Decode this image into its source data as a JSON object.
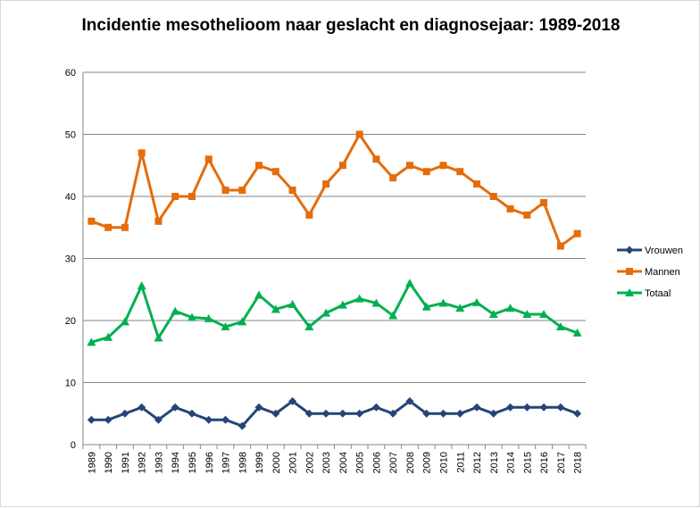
{
  "chart_data": {
    "type": "line",
    "title": "Incidentie mesothelioom naar geslacht en diagnosejaar:  1989-2018",
    "xlabel": "",
    "ylabel": "",
    "ylim": [
      0,
      60
    ],
    "yticks": [
      0,
      10,
      20,
      30,
      40,
      50,
      60
    ],
    "grid": true,
    "legend_position": "right",
    "categories": [
      "1989",
      "1990",
      "1991",
      "1992",
      "1993",
      "1994",
      "1995",
      "1996",
      "1997",
      "1998",
      "1999",
      "2000",
      "2001",
      "2002",
      "2003",
      "2004",
      "2005",
      "2006",
      "2007",
      "2008",
      "2009",
      "2010",
      "2011",
      "2012",
      "2013",
      "2014",
      "2015",
      "2016",
      "2017",
      "2018"
    ],
    "series": [
      {
        "name": "Vrouwen",
        "color": "#264478",
        "marker": "diamond",
        "values": [
          4,
          4,
          5,
          6,
          4,
          6,
          5,
          4,
          4,
          3,
          6,
          5,
          7,
          5,
          5,
          5,
          5,
          6,
          5,
          7,
          5,
          5,
          5,
          6,
          5,
          6,
          6,
          6,
          6,
          5
        ]
      },
      {
        "name": "Mannen",
        "color": "#e46c0a",
        "marker": "square",
        "values": [
          36,
          35,
          35,
          47,
          36,
          40,
          40,
          46,
          41,
          41,
          45,
          44,
          41,
          37,
          42,
          45,
          50,
          46,
          43,
          45,
          44,
          45,
          44,
          42,
          40,
          38,
          37,
          39,
          32,
          34
        ]
      },
      {
        "name": "Totaal",
        "color": "#00b050",
        "marker": "triangle",
        "values": [
          16.5,
          17.3,
          19.8,
          25.6,
          17.2,
          21.5,
          20.5,
          20.3,
          19,
          19.8,
          24.1,
          21.8,
          22.6,
          19,
          21.2,
          22.5,
          23.5,
          22.8,
          20.8,
          26,
          22.2,
          22.8,
          22,
          22.9,
          21,
          22,
          21,
          21,
          19,
          18
        ]
      }
    ]
  }
}
